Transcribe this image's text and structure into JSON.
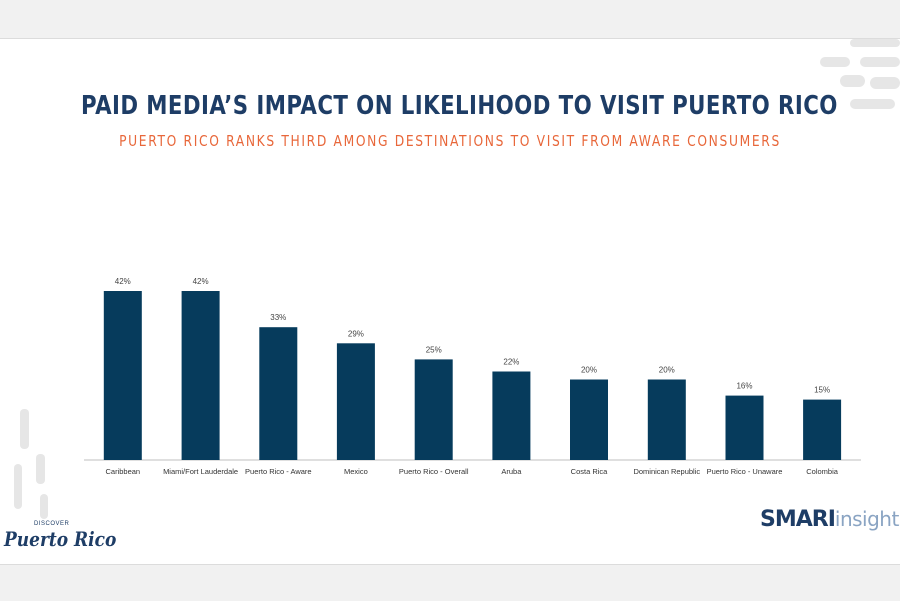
{
  "title": "PAID MEDIA’S IMPACT ON LIKELIHOOD TO VISIT PUERTO RICO",
  "subtitle": "PUERTO RICO RANKS THIRD AMONG DESTINATIONS TO VISIT FROM AWARE CONSUMERS",
  "logos": {
    "left_small": "DISCOVER",
    "left_main": "Puerto Rico",
    "right_bold": "SMARI",
    "right_light": "insights"
  },
  "colors": {
    "bar": "#063b5c",
    "title": "#1e3d66",
    "subtitle": "#e8673a"
  },
  "chart_data": {
    "type": "bar",
    "categories": [
      "Caribbean",
      "Miami/Fort Lauderdale",
      "Puerto Rico - Aware",
      "Mexico",
      "Puerto Rico - Overall",
      "Aruba",
      "Costa Rica",
      "Dominican Republic",
      "Puerto Rico - Unaware",
      "Colombia"
    ],
    "values": [
      42,
      42,
      33,
      29,
      25,
      22,
      20,
      20,
      16,
      15
    ],
    "labels": [
      "42%",
      "42%",
      "33%",
      "29%",
      "25%",
      "22%",
      "20%",
      "20%",
      "16%",
      "15%"
    ],
    "title": "PAID MEDIA’S IMPACT ON LIKELIHOOD TO VISIT PUERTO RICO",
    "xlabel": "",
    "ylabel": "",
    "ylim": [
      0,
      45
    ],
    "grid": false,
    "legend": "none"
  }
}
